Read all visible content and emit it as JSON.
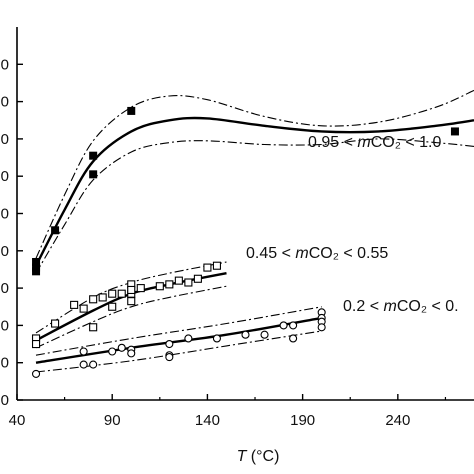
{
  "chart_data": {
    "type": "scatter",
    "xlabel_var": "T",
    "xlabel_unit": " (°C)",
    "xlim": [
      40,
      280
    ],
    "ylim": [
      0,
      10
    ],
    "xticks": [
      "40",
      "90",
      "140",
      "190",
      "240"
    ],
    "yticks": [
      "0",
      "0",
      "0",
      "0",
      "0",
      "0",
      "0",
      "0",
      "0",
      "0"
    ],
    "grid": false,
    "legend": "none",
    "series": [
      {
        "label": "0.95 < mCO₂ < 1.0",
        "marker": "filled-square",
        "points": [
          [
            50,
            3.7
          ],
          [
            50,
            3.55
          ],
          [
            50,
            3.45
          ],
          [
            60,
            4.55
          ],
          [
            80,
            6.05
          ],
          [
            80,
            6.55
          ],
          [
            100,
            7.75
          ],
          [
            270,
            7.2
          ]
        ],
        "fit": [
          [
            50,
            3.6
          ],
          [
            65,
            5.1
          ],
          [
            80,
            6.4
          ],
          [
            100,
            7.2
          ],
          [
            120,
            7.5
          ],
          [
            140,
            7.55
          ],
          [
            170,
            7.35
          ],
          [
            200,
            7.2
          ],
          [
            230,
            7.2
          ],
          [
            260,
            7.35
          ],
          [
            280,
            7.5
          ]
        ],
        "upper": [
          [
            50,
            3.8
          ],
          [
            65,
            5.5
          ],
          [
            80,
            6.95
          ],
          [
            100,
            7.85
          ],
          [
            120,
            8.15
          ],
          [
            140,
            8.05
          ],
          [
            170,
            7.6
          ],
          [
            200,
            7.35
          ],
          [
            230,
            7.45
          ],
          [
            260,
            7.85
          ],
          [
            280,
            8.3
          ]
        ],
        "lower": [
          [
            50,
            3.4
          ],
          [
            65,
            4.7
          ],
          [
            80,
            5.9
          ],
          [
            100,
            6.65
          ],
          [
            120,
            6.9
          ],
          [
            140,
            6.95
          ],
          [
            170,
            6.85
          ],
          [
            200,
            6.85
          ],
          [
            230,
            7.0
          ],
          [
            260,
            6.9
          ],
          [
            280,
            6.8
          ]
        ]
      },
      {
        "label": "0.45 < mCO₂ < 0.55",
        "marker": "open-square",
        "points": [
          [
            50,
            1.65
          ],
          [
            50,
            1.5
          ],
          [
            60,
            2.05
          ],
          [
            70,
            2.55
          ],
          [
            75,
            2.45
          ],
          [
            80,
            2.7
          ],
          [
            80,
            1.95
          ],
          [
            85,
            2.75
          ],
          [
            90,
            2.85
          ],
          [
            90,
            2.5
          ],
          [
            95,
            2.85
          ],
          [
            100,
            2.65
          ],
          [
            100,
            2.85
          ],
          [
            100,
            3.1
          ],
          [
            100,
            2.95
          ],
          [
            105,
            3.0
          ],
          [
            115,
            3.05
          ],
          [
            120,
            3.1
          ],
          [
            125,
            3.2
          ],
          [
            130,
            3.15
          ],
          [
            135,
            3.25
          ],
          [
            140,
            3.55
          ],
          [
            145,
            3.6
          ]
        ],
        "fit": [
          [
            50,
            1.6
          ],
          [
            80,
            2.4
          ],
          [
            100,
            2.85
          ],
          [
            120,
            3.1
          ],
          [
            150,
            3.4
          ]
        ],
        "upper": [
          [
            50,
            1.8
          ],
          [
            80,
            2.75
          ],
          [
            100,
            3.15
          ],
          [
            120,
            3.4
          ],
          [
            150,
            3.7
          ]
        ],
        "lower": [
          [
            50,
            1.4
          ],
          [
            80,
            2.1
          ],
          [
            100,
            2.5
          ],
          [
            120,
            2.75
          ],
          [
            150,
            3.05
          ]
        ]
      },
      {
        "label": "0.2 < mCO₂ < 0.",
        "marker": "open-circle",
        "points": [
          [
            50,
            0.7
          ],
          [
            75,
            1.3
          ],
          [
            75,
            0.95
          ],
          [
            80,
            0.95
          ],
          [
            90,
            1.3
          ],
          [
            95,
            1.4
          ],
          [
            100,
            1.35
          ],
          [
            100,
            1.25
          ],
          [
            120,
            1.5
          ],
          [
            120,
            1.2
          ],
          [
            120,
            1.15
          ],
          [
            130,
            1.65
          ],
          [
            145,
            1.65
          ],
          [
            160,
            1.75
          ],
          [
            170,
            1.75
          ],
          [
            180,
            2.0
          ],
          [
            185,
            1.65
          ],
          [
            185,
            2.0
          ],
          [
            200,
            2.35
          ],
          [
            200,
            2.2
          ],
          [
            200,
            2.1
          ],
          [
            200,
            1.95
          ]
        ],
        "fit": [
          [
            50,
            1.0
          ],
          [
            100,
            1.4
          ],
          [
            150,
            1.75
          ],
          [
            200,
            2.2
          ]
        ],
        "upper": [
          [
            50,
            1.2
          ],
          [
            100,
            1.65
          ],
          [
            150,
            2.05
          ],
          [
            200,
            2.5
          ]
        ],
        "lower": [
          [
            50,
            0.75
          ],
          [
            100,
            1.05
          ],
          [
            150,
            1.45
          ],
          [
            200,
            1.85
          ]
        ]
      }
    ]
  }
}
